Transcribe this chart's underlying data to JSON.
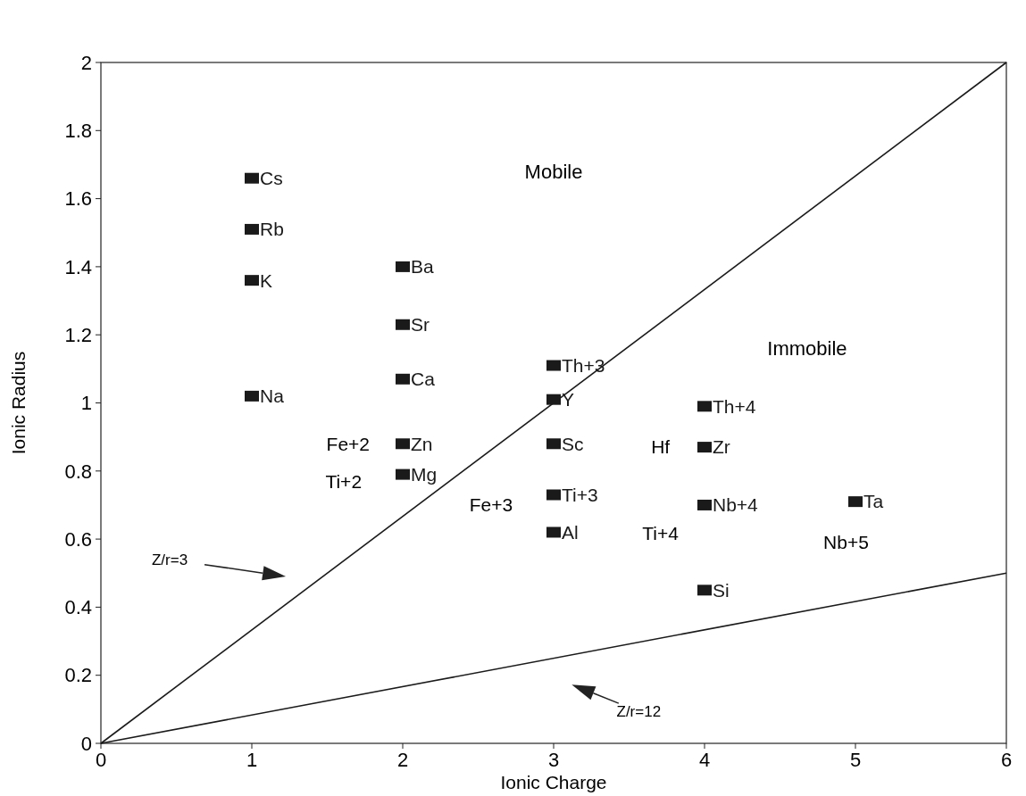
{
  "chart_data": {
    "type": "scatter",
    "xlabel": "Ionic Charge",
    "ylabel": "Ionic Radius",
    "xlim": [
      0,
      6
    ],
    "ylim": [
      0,
      2
    ],
    "xticks": [
      0,
      1,
      2,
      3,
      4,
      5,
      6
    ],
    "yticks": [
      0,
      0.2,
      0.4,
      0.6,
      0.8,
      1,
      1.2,
      1.4,
      1.6,
      1.8,
      2
    ],
    "grid": false,
    "marker": "square",
    "series": [
      {
        "type": "line",
        "marker": "none",
        "color": "#1a1a1a",
        "x": [
          0,
          6
        ],
        "values": [
          0,
          2
        ]
      },
      {
        "type": "line",
        "marker": "none",
        "color": "#1a1a1a",
        "x": [
          0,
          6
        ],
        "values": [
          0,
          0.5
        ]
      },
      {
        "name": "Cs",
        "color": "#1a1a1a",
        "x": [
          1
        ],
        "values": [
          1.66
        ]
      },
      {
        "name": "Rb",
        "color": "#1a1a1a",
        "x": [
          1
        ],
        "values": [
          1.51
        ]
      },
      {
        "name": "K",
        "color": "#1a1a1a",
        "x": [
          1
        ],
        "values": [
          1.36
        ]
      },
      {
        "name": "Na",
        "color": "#1a1a1a",
        "x": [
          1
        ],
        "values": [
          1.02
        ]
      },
      {
        "name": "Ba",
        "color": "#1a1a1a",
        "x": [
          2
        ],
        "values": [
          1.4
        ]
      },
      {
        "name": "Sr",
        "color": "#1a1a1a",
        "x": [
          2
        ],
        "values": [
          1.23
        ]
      },
      {
        "name": "Ca",
        "color": "#1a1a1a",
        "x": [
          2
        ],
        "values": [
          1.07
        ]
      },
      {
        "name": "Zn",
        "color": "#1a1a1a",
        "x": [
          2
        ],
        "values": [
          0.88
        ]
      },
      {
        "name": "Mg",
        "color": "#1a1a1a",
        "x": [
          2
        ],
        "values": [
          0.79
        ]
      },
      {
        "name": "Th+3",
        "color": "#1a1a1a",
        "x": [
          3
        ],
        "values": [
          1.11
        ]
      },
      {
        "name": "Y",
        "color": "#1a1a1a",
        "x": [
          3
        ],
        "values": [
          1.01
        ]
      },
      {
        "name": "Sc",
        "color": "#1a1a1a",
        "x": [
          3
        ],
        "values": [
          0.88
        ]
      },
      {
        "name": "Ti+3",
        "color": "#1a1a1a",
        "x": [
          3
        ],
        "values": [
          0.73
        ]
      },
      {
        "name": "Al",
        "color": "#1a1a1a",
        "x": [
          3
        ],
        "values": [
          0.62
        ]
      },
      {
        "name": "Th+4",
        "color": "#1a1a1a",
        "x": [
          4
        ],
        "values": [
          0.99
        ]
      },
      {
        "name": "Zr",
        "color": "#1a1a1a",
        "x": [
          4
        ],
        "values": [
          0.87
        ]
      },
      {
        "name": "Nb+4",
        "color": "#1a1a1a",
        "x": [
          4
        ],
        "values": [
          0.7
        ]
      },
      {
        "name": "Si",
        "color": "#1a1a1a",
        "x": [
          4
        ],
        "values": [
          0.45
        ]
      },
      {
        "name": "Ta",
        "color": "#1a1a1a",
        "x": [
          5
        ],
        "values": [
          0.71
        ]
      }
    ],
    "annotations": [
      "Mobile",
      "Immobile",
      "Z/r=3",
      "Z/r=12",
      "Fe+2",
      "Ti+2",
      "Fe+3",
      "Hf",
      "Ti+4",
      "Nb+5"
    ]
  }
}
